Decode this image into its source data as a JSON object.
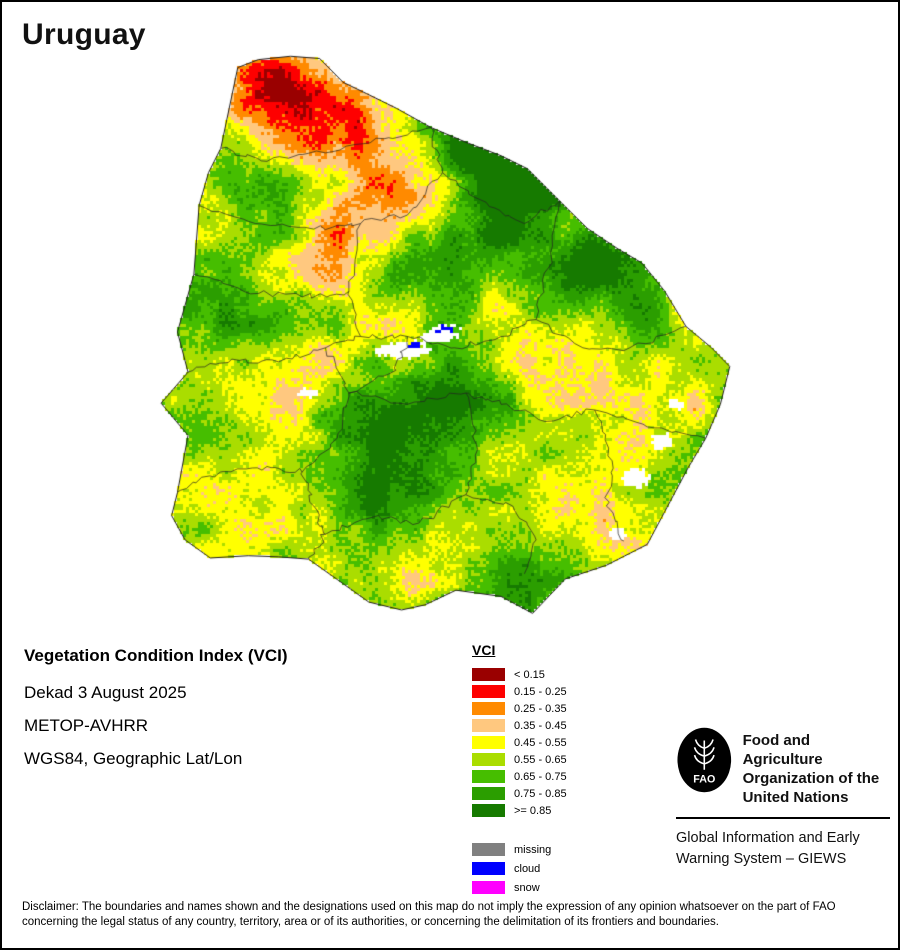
{
  "page": {
    "title": "Uruguay"
  },
  "info": {
    "product": "Vegetation Condition Index (VCI)",
    "dekad": "Dekad 3 August 2025",
    "sensor": "METOP-AVHRR",
    "projection": "WGS84, Geographic Lat/Lon"
  },
  "legend": {
    "title": "VCI",
    "classes": [
      {
        "label": "< 0.15",
        "color": "#9a0000"
      },
      {
        "label": "0.15 - 0.25",
        "color": "#fe0000"
      },
      {
        "label": "0.25 - 0.35",
        "color": "#ff8a00"
      },
      {
        "label": "0.35 - 0.45",
        "color": "#ffc87f"
      },
      {
        "label": "0.45 - 0.55",
        "color": "#ffff00"
      },
      {
        "label": "0.55 - 0.65",
        "color": "#aadd00"
      },
      {
        "label": "0.65 - 0.75",
        "color": "#46be00"
      },
      {
        "label": "0.75 - 0.85",
        "color": "#2b9e00"
      },
      {
        "label": ">= 0.85",
        "color": "#167a00"
      }
    ],
    "extras": [
      {
        "label": "missing",
        "color": "#808080"
      },
      {
        "label": "cloud",
        "color": "#0000ff"
      },
      {
        "label": "snow",
        "color": "#ff00ff"
      }
    ]
  },
  "footer": {
    "fao_name_lines": [
      "Food and Agriculture",
      "Organization of the",
      "United Nations"
    ],
    "giews_lines": [
      "Global Information and Early",
      "Warning System – GIEWS"
    ],
    "disclaimer_lines": [
      "Disclaimer: The boundaries and names shown and the designations used on this map do not imply the expression of any opinion whatsoever on the part of FAO",
      "concerning the legal status of any country, territory, area or of its authorities, or concerning the delimitation of its frontiers and boundaries."
    ]
  },
  "map": {
    "region": "Uruguay",
    "outline": [
      [
        0.15,
        0.024
      ],
      [
        0.185,
        0.01
      ],
      [
        0.24,
        0.004
      ],
      [
        0.29,
        0.008
      ],
      [
        0.33,
        0.05
      ],
      [
        0.37,
        0.07
      ],
      [
        0.421,
        0.096
      ],
      [
        0.48,
        0.13
      ],
      [
        0.542,
        0.157
      ],
      [
        0.6,
        0.18
      ],
      [
        0.645,
        0.203
      ],
      [
        0.7,
        0.26
      ],
      [
        0.748,
        0.309
      ],
      [
        0.8,
        0.345
      ],
      [
        0.841,
        0.37
      ],
      [
        0.88,
        0.42
      ],
      [
        0.916,
        0.482
      ],
      [
        0.96,
        0.52
      ],
      [
        0.991,
        0.553
      ],
      [
        0.975,
        0.62
      ],
      [
        0.95,
        0.68
      ],
      [
        0.92,
        0.732
      ],
      [
        0.885,
        0.8
      ],
      [
        0.85,
        0.868
      ],
      [
        0.78,
        0.905
      ],
      [
        0.71,
        0.929
      ],
      [
        0.654,
        0.99
      ],
      [
        0.6,
        0.96
      ],
      [
        0.523,
        0.949
      ],
      [
        0.47,
        0.975
      ],
      [
        0.43,
        0.984
      ],
      [
        0.374,
        0.97
      ],
      [
        0.32,
        0.93
      ],
      [
        0.271,
        0.894
      ],
      [
        0.22,
        0.89
      ],
      [
        0.168,
        0.888
      ],
      [
        0.103,
        0.892
      ],
      [
        0.06,
        0.86
      ],
      [
        0.037,
        0.817
      ],
      [
        0.047,
        0.776
      ],
      [
        0.065,
        0.675
      ],
      [
        0.019,
        0.618
      ],
      [
        0.065,
        0.563
      ],
      [
        0.047,
        0.492
      ],
      [
        0.075,
        0.39
      ],
      [
        0.084,
        0.268
      ],
      [
        0.1,
        0.21
      ],
      [
        0.121,
        0.167
      ]
    ],
    "boundaries": [
      [
        [
          0.121,
          0.167
        ],
        [
          0.2,
          0.19
        ],
        [
          0.3,
          0.175
        ],
        [
          0.4,
          0.15
        ],
        [
          0.48,
          0.13
        ]
      ],
      [
        [
          0.084,
          0.268
        ],
        [
          0.18,
          0.3
        ],
        [
          0.28,
          0.31
        ],
        [
          0.36,
          0.3
        ],
        [
          0.44,
          0.285
        ]
      ],
      [
        [
          0.44,
          0.285
        ],
        [
          0.5,
          0.21
        ],
        [
          0.48,
          0.13
        ]
      ],
      [
        [
          0.5,
          0.21
        ],
        [
          0.58,
          0.27
        ],
        [
          0.64,
          0.3
        ],
        [
          0.7,
          0.26
        ]
      ],
      [
        [
          0.075,
          0.39
        ],
        [
          0.16,
          0.42
        ],
        [
          0.26,
          0.43
        ],
        [
          0.34,
          0.42
        ]
      ],
      [
        [
          0.36,
          0.3
        ],
        [
          0.34,
          0.42
        ],
        [
          0.36,
          0.5
        ]
      ],
      [
        [
          0.065,
          0.563
        ],
        [
          0.14,
          0.54
        ],
        [
          0.22,
          0.545
        ],
        [
          0.3,
          0.52
        ],
        [
          0.36,
          0.5
        ],
        [
          0.44,
          0.5
        ],
        [
          0.52,
          0.52
        ],
        [
          0.6,
          0.5
        ],
        [
          0.66,
          0.47
        ]
      ],
      [
        [
          0.66,
          0.47
        ],
        [
          0.68,
          0.38
        ],
        [
          0.7,
          0.26
        ]
      ],
      [
        [
          0.66,
          0.47
        ],
        [
          0.74,
          0.52
        ],
        [
          0.82,
          0.52
        ],
        [
          0.916,
          0.482
        ]
      ],
      [
        [
          0.047,
          0.776
        ],
        [
          0.12,
          0.74
        ],
        [
          0.2,
          0.73
        ],
        [
          0.26,
          0.74
        ]
      ],
      [
        [
          0.26,
          0.74
        ],
        [
          0.32,
          0.68
        ],
        [
          0.34,
          0.6
        ],
        [
          0.3,
          0.52
        ]
      ],
      [
        [
          0.34,
          0.6
        ],
        [
          0.44,
          0.62
        ],
        [
          0.54,
          0.6
        ],
        [
          0.6,
          0.62
        ]
      ],
      [
        [
          0.6,
          0.62
        ],
        [
          0.68,
          0.65
        ],
        [
          0.76,
          0.63
        ],
        [
          0.85,
          0.66
        ],
        [
          0.95,
          0.68
        ]
      ],
      [
        [
          0.54,
          0.6
        ],
        [
          0.56,
          0.7
        ],
        [
          0.54,
          0.78
        ]
      ],
      [
        [
          0.3,
          0.85
        ],
        [
          0.38,
          0.82
        ],
        [
          0.46,
          0.83
        ],
        [
          0.54,
          0.78
        ]
      ],
      [
        [
          0.54,
          0.78
        ],
        [
          0.62,
          0.8
        ],
        [
          0.66,
          0.86
        ],
        [
          0.64,
          0.92
        ]
      ],
      [
        [
          0.26,
          0.74
        ],
        [
          0.28,
          0.8
        ],
        [
          0.3,
          0.85
        ],
        [
          0.271,
          0.894
        ]
      ],
      [
        [
          0.76,
          0.63
        ],
        [
          0.79,
          0.72
        ],
        [
          0.78,
          0.8
        ],
        [
          0.81,
          0.862
        ]
      ],
      [
        [
          0.44,
          0.5
        ],
        [
          0.42,
          0.56
        ],
        [
          0.34,
          0.6
        ]
      ]
    ],
    "red_blobs": [
      [
        0.26,
        0.13,
        0.14,
        0.32
      ],
      [
        0.21,
        0.06,
        0.09,
        0.22
      ],
      [
        0.35,
        0.1,
        0.07,
        0.18
      ],
      [
        0.33,
        0.36,
        0.11,
        0.28
      ],
      [
        0.4,
        0.53,
        0.08,
        0.26
      ],
      [
        0.29,
        0.56,
        0.05,
        0.18
      ],
      [
        0.66,
        0.52,
        0.11,
        0.26
      ],
      [
        0.78,
        0.62,
        0.07,
        0.22
      ],
      [
        0.58,
        0.44,
        0.06,
        0.16
      ],
      [
        0.44,
        0.92,
        0.05,
        0.28
      ],
      [
        0.88,
        0.55,
        0.05,
        0.2
      ],
      [
        0.47,
        0.25,
        0.06,
        0.14
      ],
      [
        0.93,
        0.62,
        0.04,
        0.18
      ]
    ],
    "green_blobs": [
      [
        0.57,
        0.17,
        0.09,
        0.4
      ],
      [
        0.64,
        0.24,
        0.07,
        0.22
      ],
      [
        0.18,
        0.45,
        0.12,
        0.2
      ],
      [
        0.23,
        0.29,
        0.07,
        0.12
      ],
      [
        0.46,
        0.75,
        0.14,
        0.16
      ],
      [
        0.76,
        0.36,
        0.09,
        0.16
      ],
      [
        0.12,
        0.62,
        0.08,
        0.16
      ],
      [
        0.35,
        0.66,
        0.08,
        0.14
      ],
      [
        0.6,
        0.86,
        0.08,
        0.14
      ],
      [
        0.52,
        0.62,
        0.06,
        0.12
      ]
    ],
    "white_patches": [
      [
        0.43,
        0.525,
        0.06,
        0.016
      ],
      [
        0.495,
        0.5,
        0.04,
        0.014
      ],
      [
        0.27,
        0.6,
        0.02,
        0.01
      ],
      [
        0.83,
        0.75,
        0.028,
        0.022
      ],
      [
        0.875,
        0.685,
        0.022,
        0.018
      ],
      [
        0.8,
        0.85,
        0.018,
        0.014
      ],
      [
        0.9,
        0.62,
        0.016,
        0.012
      ]
    ],
    "cloud_patches": [
      [
        0.505,
        0.487,
        0.03,
        0.012
      ],
      [
        0.455,
        0.515,
        0.018,
        0.009
      ]
    ]
  }
}
